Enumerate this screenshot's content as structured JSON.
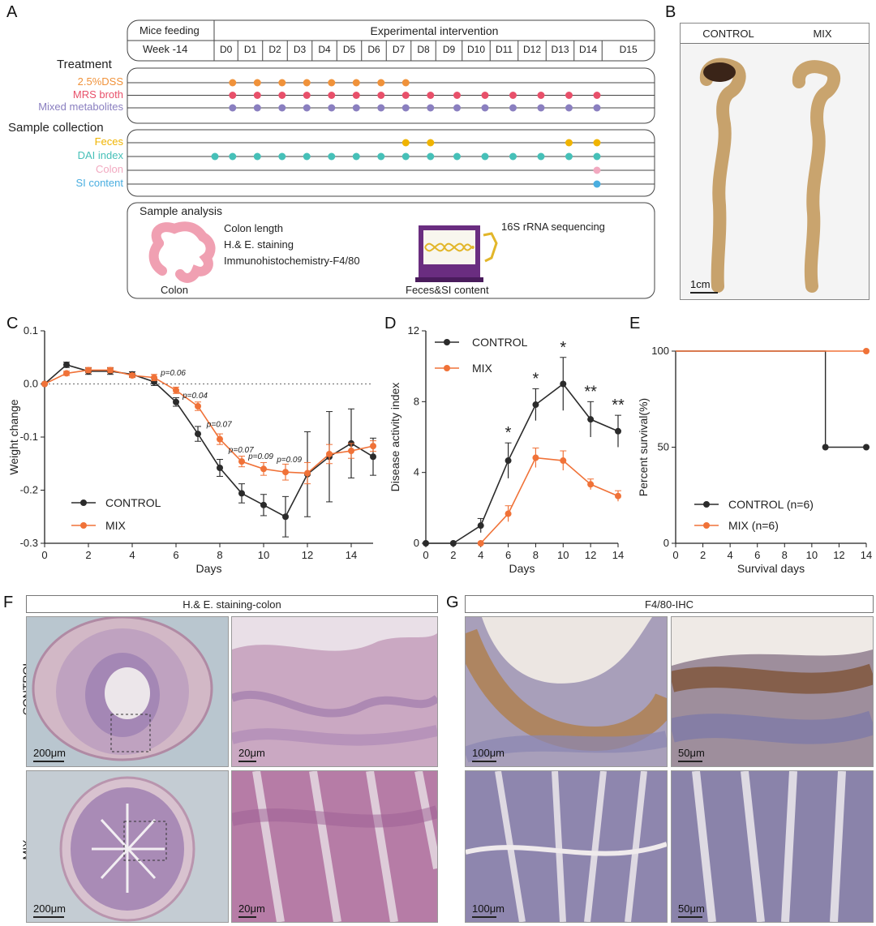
{
  "panels": {
    "A": "A",
    "B": "B",
    "C": "C",
    "D": "D",
    "E": "E",
    "F": "F",
    "G": "G"
  },
  "panelA": {
    "header_feed": "Mice feeding",
    "header_exp": "Experimental intervention",
    "week": "Week -14",
    "days": [
      "D0",
      "D1",
      "D2",
      "D3",
      "D4",
      "D5",
      "D6",
      "D7",
      "D8",
      "D9",
      "D10",
      "D11",
      "D12",
      "D13",
      "D14",
      "D15"
    ],
    "treatment_title": "Treatment",
    "treatments": [
      {
        "label": "2.5%DSS",
        "color": "#f0923a",
        "days": [
          1,
          2,
          3,
          4,
          5,
          6,
          7,
          8
        ]
      },
      {
        "label": "MRS broth",
        "color": "#e8506a",
        "days": [
          1,
          2,
          3,
          4,
          5,
          6,
          7,
          8,
          9,
          10,
          11,
          12,
          13,
          14,
          15
        ]
      },
      {
        "label": "Mixed metabolites",
        "color": "#8a7fc0",
        "days": [
          1,
          2,
          3,
          4,
          5,
          6,
          7,
          8,
          9,
          10,
          11,
          12,
          13,
          14,
          15
        ]
      }
    ],
    "sample_title": "Sample collection",
    "samples": [
      {
        "label": "Feces",
        "color": "#f0b400",
        "days": [
          8,
          9,
          14,
          15
        ]
      },
      {
        "label": "DAI index",
        "color": "#46c0b8",
        "days": [
          0,
          1,
          2,
          3,
          4,
          5,
          6,
          7,
          8,
          9,
          10,
          11,
          12,
          13,
          14,
          15
        ]
      },
      {
        "label": "Colon",
        "color": "#f2a9c0",
        "days": [
          15
        ]
      },
      {
        "label": "SI content",
        "color": "#4aaee0",
        "days": [
          15
        ]
      }
    ],
    "analysis_title": "Sample analysis",
    "analysis_items": [
      "Colon length",
      "H.& E. staining",
      "Immunohistochemistry-F4/80"
    ],
    "colon_label": "Colon",
    "seq_label": "16S rRNA sequencing",
    "feces_label": "Feces&SI content"
  },
  "panelB": {
    "control": "CONTROL",
    "mix": "MIX",
    "scale": "1cm"
  },
  "chart_data": [
    {
      "type": "line",
      "id": "C",
      "xlabel": "Days",
      "ylabel": "Weight change",
      "xlim": [
        0,
        15
      ],
      "ylim": [
        -0.3,
        0.1
      ],
      "xticks": [
        0,
        2,
        4,
        6,
        8,
        10,
        12,
        14
      ],
      "yticks": [
        0.1,
        0.0,
        -0.1,
        -0.2,
        -0.3
      ],
      "ytick_labels": [
        "0.1",
        "0.0",
        "-0.1",
        "-0.2",
        "-0.3"
      ],
      "legend_position": "lower-left",
      "series": [
        {
          "name": "CONTROL",
          "color": "#2b2b2b",
          "x": [
            0,
            1,
            2,
            3,
            4,
            5,
            6,
            7,
            8,
            9,
            10,
            11,
            12,
            13,
            14,
            15
          ],
          "y": [
            0.0,
            0.036,
            0.024,
            0.024,
            0.018,
            0.004,
            -0.034,
            -0.094,
            -0.158,
            -0.206,
            -0.228,
            -0.25,
            -0.17,
            -0.137,
            -0.112,
            -0.137
          ],
          "err": [
            0,
            0.005,
            0.006,
            0.006,
            0.005,
            0.007,
            0.008,
            0.014,
            0.016,
            0.018,
            0.02,
            0.038,
            0.08,
            0.085,
            0.065,
            0.035
          ]
        },
        {
          "name": "MIX",
          "color": "#f07238",
          "x": [
            0,
            1,
            2,
            3,
            4,
            5,
            6,
            7,
            8,
            9,
            10,
            11,
            12,
            13,
            14,
            15
          ],
          "y": [
            0.0,
            0.02,
            0.026,
            0.026,
            0.016,
            0.012,
            -0.012,
            -0.042,
            -0.104,
            -0.146,
            -0.16,
            -0.166,
            -0.168,
            -0.132,
            -0.126,
            -0.117
          ],
          "err": [
            0,
            0.004,
            0.005,
            0.005,
            0.004,
            0.006,
            0.006,
            0.008,
            0.01,
            0.01,
            0.012,
            0.015,
            0.02,
            0.018,
            0.014,
            0.01
          ]
        }
      ],
      "annotations": [
        {
          "x": 5.3,
          "y": 0.016,
          "text": "p=0.06"
        },
        {
          "x": 6.3,
          "y": -0.027,
          "text": "p=0.04"
        },
        {
          "x": 7.4,
          "y": -0.081,
          "text": "p=0.07"
        },
        {
          "x": 8.4,
          "y": -0.129,
          "text": "p=0.07"
        },
        {
          "x": 9.3,
          "y": -0.141,
          "text": "p=0.09"
        },
        {
          "x": 10.6,
          "y": -0.147,
          "text": "p=0.09"
        }
      ]
    },
    {
      "type": "line",
      "id": "D",
      "xlabel": "Days",
      "ylabel": "Disease activity index",
      "xlim": [
        0,
        14
      ],
      "ylim": [
        0,
        12
      ],
      "xticks": [
        0,
        2,
        4,
        6,
        8,
        10,
        12,
        14
      ],
      "yticks": [
        0,
        4,
        8,
        12
      ],
      "legend_position": "top-left",
      "series": [
        {
          "name": "CONTROL",
          "color": "#2b2b2b",
          "x": [
            0,
            2,
            4,
            6,
            8,
            10,
            12,
            14
          ],
          "y": [
            0,
            0,
            1.0,
            4.67,
            7.83,
            9.0,
            7.0,
            6.33
          ],
          "err": [
            0,
            0,
            0.4,
            1.0,
            0.9,
            1.5,
            1.0,
            0.9
          ]
        },
        {
          "name": "MIX",
          "color": "#f07238",
          "x": [
            4,
            6,
            8,
            10,
            12,
            14
          ],
          "y": [
            0,
            1.67,
            4.83,
            4.67,
            3.33,
            2.67
          ],
          "err": [
            0,
            0.45,
            0.55,
            0.55,
            0.3,
            0.3
          ]
        }
      ],
      "annotations": [
        {
          "x": 6,
          "text": "*"
        },
        {
          "x": 8,
          "text": "*"
        },
        {
          "x": 10,
          "text": "*"
        },
        {
          "x": 12,
          "text": "**"
        },
        {
          "x": 14,
          "text": "**"
        }
      ]
    },
    {
      "type": "line",
      "id": "E",
      "xlabel": "Survival days",
      "ylabel": "Percent survival(%)",
      "xlim": [
        0,
        14
      ],
      "ylim": [
        0,
        100
      ],
      "xticks": [
        0,
        2,
        4,
        6,
        8,
        10,
        12,
        14
      ],
      "yticks": [
        0,
        50,
        100
      ],
      "legend_position": "lower-left",
      "series": [
        {
          "name": "CONTROL (n=6)",
          "color": "#2b2b2b",
          "steps": [
            [
              0,
              100
            ],
            [
              11,
              100
            ],
            [
              11,
              50
            ],
            [
              14,
              50
            ]
          ],
          "points": [
            [
              11,
              50
            ],
            [
              14,
              50
            ]
          ]
        },
        {
          "name": "MIX (n=6)",
          "color": "#f07238",
          "steps": [
            [
              0,
              100
            ],
            [
              14,
              100
            ]
          ],
          "points": [
            [
              14,
              100
            ]
          ]
        }
      ]
    }
  ],
  "panelF": {
    "header": "H.& E. staining-colon",
    "row1": "CONTROL",
    "row2": "MIX",
    "scales": [
      "200μm",
      "20μm",
      "200μm",
      "20μm"
    ]
  },
  "panelG": {
    "header": "F4/80-IHC",
    "scales": [
      "100μm",
      "50μm",
      "100μm",
      "50μm"
    ]
  }
}
